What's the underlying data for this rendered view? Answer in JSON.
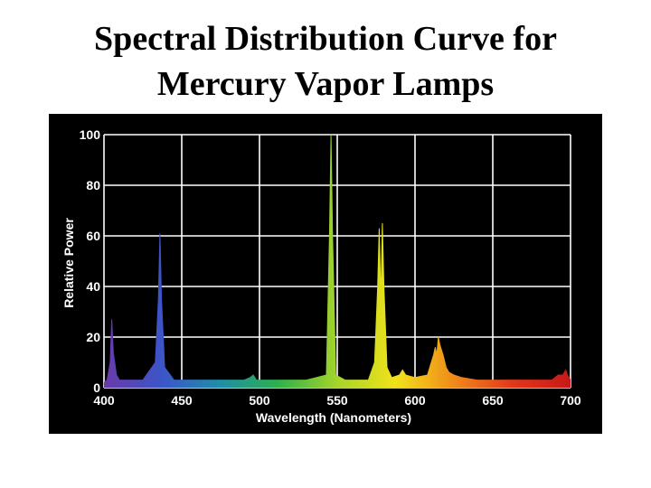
{
  "slide": {
    "title_line1": "Spectral Distribution Curve for",
    "title_line2": "Mercury Vapor Lamps"
  },
  "colors": {
    "panel_background": "#000000",
    "grid": "#ffffff",
    "text": "#ffffff",
    "gradient_stops": [
      "#6a3aa8",
      "#3b55c8",
      "#1f8ea8",
      "#2fb04a",
      "#a6d42a",
      "#f2e21a",
      "#f08a1a",
      "#e2381a",
      "#c81818"
    ]
  },
  "chart_data": {
    "type": "area",
    "title": "",
    "xlabel": "Wavelength (Nanometers)",
    "ylabel": "Relative Power",
    "xlim": [
      400,
      700
    ],
    "ylim": [
      0,
      100
    ],
    "xticks": [
      "400",
      "450",
      "500",
      "550",
      "600",
      "650",
      "700"
    ],
    "yticks": [
      "0",
      "20",
      "40",
      "60",
      "80",
      "100"
    ],
    "grid": true,
    "series": [
      {
        "x": [
          400,
          402,
          404,
          405,
          406,
          408,
          410,
          415,
          425,
          433,
          435,
          436,
          437,
          439,
          445,
          470,
          490,
          494,
          496,
          498,
          510,
          530,
          543,
          545,
          546,
          547,
          549,
          555,
          570,
          574,
          576,
          577,
          578,
          579,
          580,
          582,
          585,
          590,
          592,
          594,
          600,
          608,
          610,
          612,
          613,
          614,
          615,
          616,
          618,
          620,
          622,
          625,
          630,
          640,
          650,
          660,
          670,
          680,
          688,
          692,
          695,
          697,
          698,
          700
        ],
        "y": [
          2,
          3,
          10,
          27,
          14,
          5,
          3,
          3,
          3,
          10,
          35,
          61,
          35,
          8,
          3,
          3,
          3,
          4,
          5,
          3,
          3,
          3,
          5,
          60,
          100,
          60,
          5,
          3,
          3,
          10,
          40,
          63,
          35,
          65,
          40,
          8,
          4,
          5,
          7,
          5,
          4,
          5,
          9,
          13,
          16,
          13,
          20,
          17,
          13,
          8,
          6,
          5,
          4,
          3,
          3,
          3,
          3,
          3,
          3,
          5,
          5,
          7,
          5,
          3
        ]
      }
    ]
  }
}
